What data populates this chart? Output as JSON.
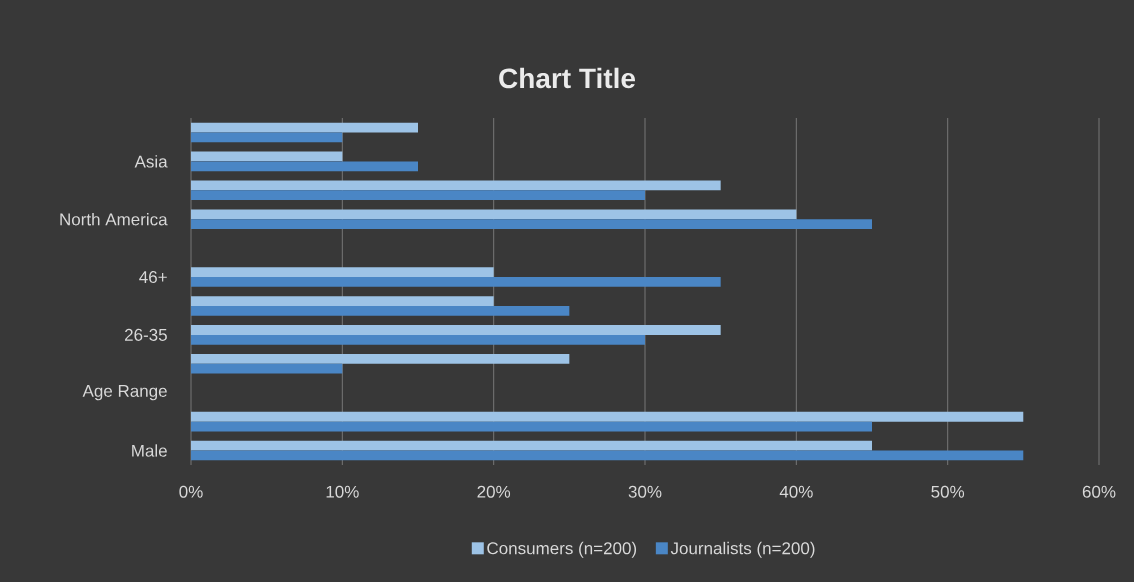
{
  "chart_data": {
    "type": "bar",
    "orientation": "horizontal",
    "title": "Chart Title",
    "categories": [
      null,
      "Asia",
      null,
      "North America",
      null,
      "46+",
      null,
      "26-35",
      null,
      "Age Range",
      null,
      "Male"
    ],
    "series": [
      {
        "name": "Consumers (n=200)",
        "color": "#9dc3e6",
        "values": [
          15,
          10,
          35,
          40,
          null,
          20,
          20,
          35,
          25,
          null,
          55,
          45
        ]
      },
      {
        "name": "Journalists (n=200)",
        "color": "#4a86c5",
        "values": [
          10,
          15,
          30,
          45,
          null,
          35,
          25,
          30,
          10,
          null,
          45,
          55
        ]
      }
    ],
    "xlim": [
      0,
      60
    ],
    "xticks": [
      {
        "value": 0,
        "label": "0%"
      },
      {
        "value": 10,
        "label": "10%"
      },
      {
        "value": 20,
        "label": "20%"
      },
      {
        "value": 30,
        "label": "30%"
      },
      {
        "value": 40,
        "label": "40%"
      },
      {
        "value": 50,
        "label": "50%"
      },
      {
        "value": 60,
        "label": "60%"
      }
    ],
    "grid": "x",
    "legend": "bottom"
  }
}
